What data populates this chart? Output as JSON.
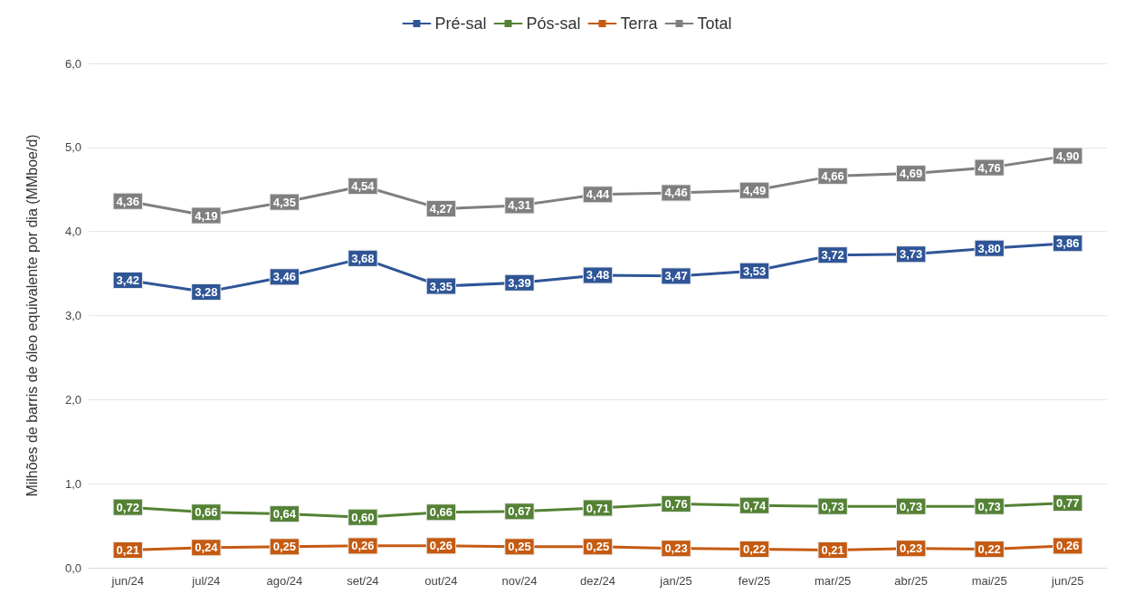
{
  "chart_data": {
    "type": "line",
    "ylabel": "Milhões de barris de óleo equivalente por dia (MMboe/d)",
    "categories": [
      "jun/24",
      "jul/24",
      "ago/24",
      "set/24",
      "out/24",
      "nov/24",
      "dez/24",
      "jan/25",
      "fev/25",
      "mar/25",
      "abr/25",
      "mai/25",
      "jun/25"
    ],
    "series": [
      {
        "name": "Pré-sal",
        "color": "#2f5597",
        "values": [
          3.42,
          3.28,
          3.46,
          3.68,
          3.35,
          3.39,
          3.48,
          3.47,
          3.53,
          3.72,
          3.73,
          3.8,
          3.86
        ],
        "value_labels": [
          "3,42",
          "3,28",
          "3,46",
          "3,68",
          "3,35",
          "3,39",
          "3,48",
          "3,47",
          "3,53",
          "3,72",
          "3,73",
          "3,80",
          "3,86"
        ]
      },
      {
        "name": "Pós-sal",
        "color": "#548235",
        "values": [
          0.72,
          0.66,
          0.64,
          0.6,
          0.66,
          0.67,
          0.71,
          0.76,
          0.74,
          0.73,
          0.73,
          0.73,
          0.77
        ],
        "value_labels": [
          "0,72",
          "0,66",
          "0,64",
          "0,60",
          "0,66",
          "0,67",
          "0,71",
          "0,76",
          "0,74",
          "0,73",
          "0,73",
          "0,73",
          "0,77"
        ]
      },
      {
        "name": "Terra",
        "color": "#c55a11",
        "values": [
          0.21,
          0.24,
          0.25,
          0.26,
          0.26,
          0.25,
          0.25,
          0.23,
          0.22,
          0.21,
          0.23,
          0.22,
          0.26
        ],
        "value_labels": [
          "0,21",
          "0,24",
          "0,25",
          "0,26",
          "0,26",
          "0,25",
          "0,25",
          "0,23",
          "0,22",
          "0,21",
          "0,23",
          "0,22",
          "0,26"
        ]
      },
      {
        "name": "Total",
        "color": "#7f7f7f",
        "values": [
          4.36,
          4.19,
          4.35,
          4.54,
          4.27,
          4.31,
          4.44,
          4.46,
          4.49,
          4.66,
          4.69,
          4.76,
          4.9
        ],
        "value_labels": [
          "4,36",
          "4,19",
          "4,35",
          "4,54",
          "4,27",
          "4,31",
          "4,44",
          "4,46",
          "4,49",
          "4,66",
          "4,69",
          "4,76",
          "4,90"
        ]
      }
    ],
    "ylim": [
      0,
      6
    ],
    "yticks": [
      {
        "value": 0,
        "label": "0,0"
      },
      {
        "value": 1,
        "label": "1,0"
      },
      {
        "value": 2,
        "label": "2,0"
      },
      {
        "value": 3,
        "label": "3,0"
      },
      {
        "value": 4,
        "label": "4,0"
      },
      {
        "value": 5,
        "label": "5,0"
      },
      {
        "value": 6,
        "label": "6,0"
      }
    ],
    "grid": "y",
    "legend": "top",
    "marker": "square",
    "line_style": "solid"
  }
}
